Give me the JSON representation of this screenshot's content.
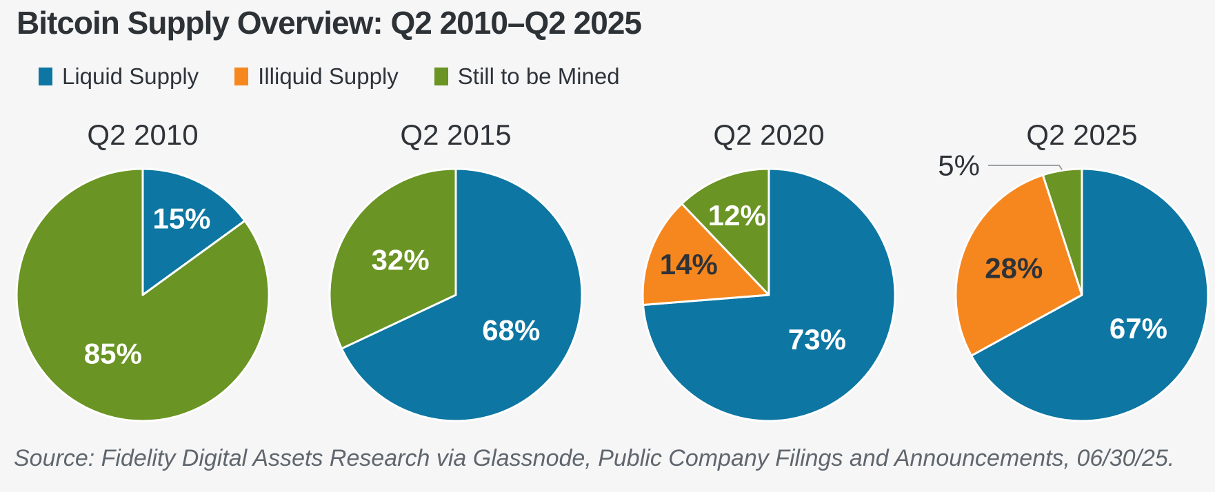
{
  "page": {
    "background": "#f6f6f7",
    "text_dark": "#2e3338"
  },
  "header": {
    "title": "Bitcoin Supply Overview: Q2 2010–Q2 2025"
  },
  "legend": {
    "position": "top-left",
    "items": [
      {
        "label": "Liquid Supply",
        "color": "#0d76a2"
      },
      {
        "label": "Illiquid Supply",
        "color": "#f6871f"
      },
      {
        "label": "Still to be Mined",
        "color": "#6a9423"
      }
    ]
  },
  "chart_data": {
    "type": "pie",
    "title": "Bitcoin Supply Overview: Q2 2010–Q2 2025",
    "start_angle": "12 o'clock",
    "direction": "clockwise",
    "legend_position": "top-left",
    "grid": false,
    "categories": [
      "Liquid Supply",
      "Illiquid Supply",
      "Still to be Mined"
    ],
    "charts": [
      {
        "title": "Q2 2010",
        "slices": [
          {
            "name": "Liquid Supply",
            "value": 15,
            "label": "15%",
            "color": "#0d76a2",
            "label_color": "#ffffff"
          },
          {
            "name": "Still to be Mined",
            "value": 85,
            "label": "85%",
            "color": "#6a9423",
            "label_color": "#ffffff"
          }
        ]
      },
      {
        "title": "Q2 2015",
        "slices": [
          {
            "name": "Liquid Supply",
            "value": 68,
            "label": "68%",
            "color": "#0d76a2",
            "label_color": "#ffffff"
          },
          {
            "name": "Still to be Mined",
            "value": 32,
            "label": "32%",
            "color": "#6a9423",
            "label_color": "#ffffff"
          }
        ]
      },
      {
        "title": "Q2 2020",
        "slices": [
          {
            "name": "Liquid Supply",
            "value": 73,
            "label": "73%",
            "color": "#0d76a2",
            "label_color": "#ffffff"
          },
          {
            "name": "Illiquid Supply",
            "value": 14,
            "label": "14%",
            "color": "#f6871f",
            "label_color": "#2e3338"
          },
          {
            "name": "Still to be Mined",
            "value": 12,
            "label": "12%",
            "color": "#6a9423",
            "label_color": "#ffffff"
          }
        ]
      },
      {
        "title": "Q2 2025",
        "slices": [
          {
            "name": "Liquid Supply",
            "value": 67,
            "label": "67%",
            "color": "#0d76a2",
            "label_color": "#ffffff"
          },
          {
            "name": "Illiquid Supply",
            "value": 28,
            "label": "28%",
            "color": "#f6871f",
            "label_color": "#2e3338"
          },
          {
            "name": "Still to be Mined",
            "value": 5,
            "label": "5%",
            "color": "#6a9423",
            "label_color": "#2e3338",
            "label_outside": true
          }
        ]
      }
    ],
    "callout_line_color": "#9aa0a6",
    "slice_separator_color": "#ffffff"
  },
  "source": {
    "text": "Source: Fidelity Digital Assets Research via Glassnode, Public Company Filings and Announcements, 06/30/25."
  }
}
